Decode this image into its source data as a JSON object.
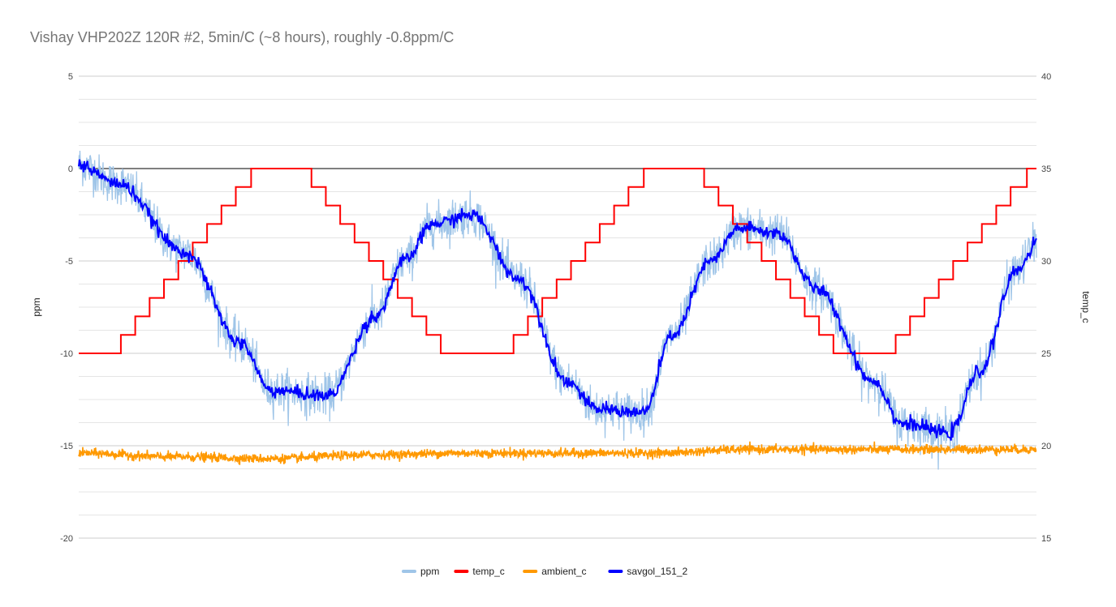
{
  "chart_data": {
    "type": "line",
    "title": "Vishay VHP202Z 120R #2, 5min/C (~8 hours), roughly -0.8ppm/C",
    "left_axis": {
      "label": "ppm",
      "ylim": [
        -20,
        5
      ],
      "ticks": [
        5,
        0,
        -5,
        -10,
        -15,
        -20
      ]
    },
    "right_axis": {
      "label": "temp_c",
      "ylim": [
        15,
        40
      ],
      "ticks": [
        40,
        35,
        30,
        25,
        20,
        15
      ]
    },
    "x_samples": 1000,
    "grid": true,
    "legend_position": "bottom",
    "colors": {
      "ppm": "#9fc5e8",
      "temp_c": "#ff0000",
      "ambient_c": "#ff9900",
      "savgol_151_2": "#0000ff",
      "gridline": "#cccccc",
      "zeroline": "#333333"
    },
    "series": [
      {
        "name": "ppm",
        "axis": "left",
        "description_points": [
          [
            0,
            0.2
          ],
          [
            40,
            -0.8
          ],
          [
            110,
            -4.5
          ],
          [
            170,
            -9.5
          ],
          [
            200,
            -12.0
          ],
          [
            260,
            -12.3
          ],
          [
            310,
            -8.0
          ],
          [
            340,
            -5.0
          ],
          [
            370,
            -3.0
          ],
          [
            410,
            -2.5
          ],
          [
            460,
            -6.0
          ],
          [
            510,
            -11.5
          ],
          [
            540,
            -13.0
          ],
          [
            590,
            -13.2
          ],
          [
            620,
            -9.0
          ],
          [
            660,
            -5.0
          ],
          [
            690,
            -3.2
          ],
          [
            730,
            -3.5
          ],
          [
            770,
            -6.5
          ],
          [
            830,
            -11.5
          ],
          [
            860,
            -13.8
          ],
          [
            910,
            -14.3
          ],
          [
            940,
            -11.0
          ],
          [
            980,
            -5.5
          ],
          [
            1000,
            -4.0
          ]
        ]
      },
      {
        "name": "temp_c",
        "axis": "right",
        "steps": [
          [
            0,
            25
          ],
          [
            44,
            26
          ],
          [
            59,
            27
          ],
          [
            74,
            28
          ],
          [
            89,
            29
          ],
          [
            104,
            30
          ],
          [
            119,
            31
          ],
          [
            134,
            32
          ],
          [
            149,
            33
          ],
          [
            164,
            34
          ],
          [
            180,
            35
          ],
          [
            243,
            34
          ],
          [
            258,
            33
          ],
          [
            273,
            32
          ],
          [
            288,
            31
          ],
          [
            303,
            30
          ],
          [
            318,
            29
          ],
          [
            333,
            28
          ],
          [
            348,
            27
          ],
          [
            363,
            26
          ],
          [
            378,
            25
          ],
          [
            454,
            26
          ],
          [
            469,
            27
          ],
          [
            484,
            28
          ],
          [
            499,
            29
          ],
          [
            514,
            30
          ],
          [
            529,
            31
          ],
          [
            544,
            32
          ],
          [
            559,
            33
          ],
          [
            574,
            34
          ],
          [
            590,
            35
          ],
          [
            653,
            34
          ],
          [
            668,
            33
          ],
          [
            683,
            32
          ],
          [
            698,
            31
          ],
          [
            713,
            30
          ],
          [
            728,
            29
          ],
          [
            743,
            28
          ],
          [
            758,
            27
          ],
          [
            773,
            26
          ],
          [
            788,
            25
          ],
          [
            853,
            26
          ],
          [
            868,
            27
          ],
          [
            883,
            28
          ],
          [
            898,
            29
          ],
          [
            913,
            30
          ],
          [
            928,
            31
          ],
          [
            943,
            32
          ],
          [
            958,
            33
          ],
          [
            973,
            34
          ],
          [
            990,
            35
          ]
        ]
      },
      {
        "name": "ambient_c",
        "axis": "right",
        "description_points": [
          [
            0,
            19.6
          ],
          [
            100,
            19.4
          ],
          [
            200,
            19.3
          ],
          [
            300,
            19.5
          ],
          [
            400,
            19.6
          ],
          [
            500,
            19.6
          ],
          [
            600,
            19.6
          ],
          [
            700,
            19.8
          ],
          [
            800,
            19.8
          ],
          [
            900,
            19.8
          ],
          [
            1000,
            19.8
          ]
        ]
      },
      {
        "name": "savgol_151_2",
        "axis": "left",
        "description_points": [
          [
            0,
            0.2
          ],
          [
            40,
            -0.8
          ],
          [
            110,
            -4.5
          ],
          [
            170,
            -9.5
          ],
          [
            200,
            -12.0
          ],
          [
            260,
            -12.3
          ],
          [
            310,
            -8.0
          ],
          [
            340,
            -5.0
          ],
          [
            370,
            -3.0
          ],
          [
            410,
            -2.5
          ],
          [
            460,
            -6.0
          ],
          [
            510,
            -11.5
          ],
          [
            540,
            -13.0
          ],
          [
            590,
            -13.2
          ],
          [
            620,
            -9.0
          ],
          [
            660,
            -5.0
          ],
          [
            690,
            -3.2
          ],
          [
            730,
            -3.5
          ],
          [
            770,
            -6.5
          ],
          [
            830,
            -11.5
          ],
          [
            860,
            -13.8
          ],
          [
            910,
            -14.3
          ],
          [
            940,
            -11.0
          ],
          [
            980,
            -5.5
          ],
          [
            1000,
            -4.0
          ]
        ]
      }
    ],
    "legend": [
      "ppm",
      "temp_c",
      "ambient_c",
      "savgol_151_2"
    ]
  }
}
